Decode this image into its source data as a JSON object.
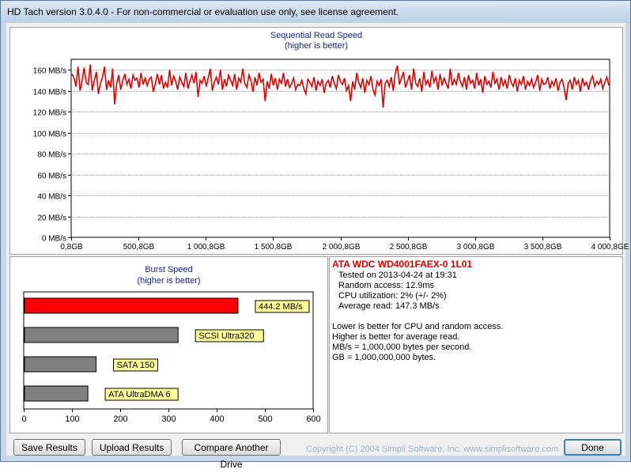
{
  "window": {
    "title": "HD Tach version 3.0.4.0  - For non-commercial or evaluation use only, see license agreement."
  },
  "read_chart": {
    "title": "Sequential Read Speed",
    "subtitle": "(higher is better)",
    "line_color": "#e00000",
    "chart_data": {
      "type": "line",
      "title": "Sequential Read Speed",
      "subtitle": "(higher is better)",
      "yticks": [
        "0 MB/s",
        "20 MB/s",
        "40 MB/s",
        "60 MB/s",
        "80 MB/s",
        "100 MB/s",
        "120 MB/s",
        "140 MB/s",
        "160 MB/s"
      ],
      "xticks": [
        "0,8GB",
        "500,8GB",
        "1 000,8GB",
        "1 500,8GB",
        "2 000,8GB",
        "2 500,8GB",
        "3 000,8GB",
        "3 500,8GB",
        "4 000,8GE"
      ],
      "ylim": [
        0,
        170
      ],
      "xlim": [
        0.8,
        4000.8
      ],
      "grid": true,
      "series": [
        {
          "values": [
            156,
            152,
            144,
            163,
            140,
            150,
            162,
            148,
            146,
            165,
            140,
            150,
            158,
            137,
            147,
            153,
            163,
            141,
            150,
            143,
            161,
            127,
            147,
            155,
            141,
            150,
            156,
            146,
            151,
            142,
            155,
            150,
            152,
            143,
            157,
            146,
            152,
            145,
            151,
            153,
            139,
            147,
            156,
            146,
            155,
            142,
            148,
            143,
            160,
            145,
            154,
            149,
            141,
            153,
            148,
            144,
            157,
            142,
            149,
            155,
            147,
            158,
            134,
            150,
            147,
            154,
            144,
            152,
            161,
            140,
            148,
            153,
            146,
            160,
            141,
            151,
            144,
            155,
            150,
            145,
            156,
            141,
            152,
            148,
            161,
            147,
            143,
            155,
            150,
            139,
            153,
            145,
            157,
            148,
            151,
            130,
            149,
            142,
            156,
            145,
            152,
            141,
            151,
            147,
            157,
            144,
            151,
            143,
            147,
            152,
            141,
            146,
            145,
            150,
            142,
            137,
            151,
            148,
            144,
            153,
            140,
            149,
            145,
            151,
            138,
            147,
            150,
            143,
            154,
            147,
            142,
            155,
            149,
            146,
            152,
            140,
            145,
            130,
            149,
            141,
            157,
            148,
            143,
            152,
            138,
            150,
            146,
            154,
            141,
            136,
            149,
            145,
            151,
            124,
            147,
            150,
            144,
            153,
            140,
            157,
            164,
            146,
            152,
            158,
            143,
            149,
            155,
            141,
            161,
            147,
            144,
            152,
            139,
            158,
            146,
            150,
            143,
            159,
            148,
            153,
            141,
            156,
            145,
            152,
            147,
            142,
            161,
            145,
            151,
            146,
            157,
            149,
            144,
            153,
            141,
            155,
            147,
            150,
            142,
            157,
            145,
            151,
            138,
            154,
            146,
            149,
            143,
            158,
            147,
            151,
            141,
            153,
            145,
            150,
            142,
            155,
            148,
            144,
            152,
            139,
            150,
            146,
            154,
            141,
            149,
            145,
            151,
            143,
            148,
            155,
            140,
            151,
            146,
            147,
            153,
            142,
            149,
            145,
            152,
            140,
            148,
            151,
            143,
            131,
            147,
            150,
            141,
            153,
            146,
            150,
            139,
            152,
            145,
            148,
            141,
            150,
            154,
            144,
            149,
            146,
            151,
            142,
            148,
            153,
            145
          ]
        }
      ]
    }
  },
  "burst_chart": {
    "title": "Burst Speed",
    "subtitle": "(higher is better)",
    "chart_data": {
      "type": "bar",
      "title": "Burst Speed",
      "subtitle": "(higher is better)",
      "categories": [
        "ATA WDC WD4001FAEX-0 1L01",
        "SCSI Ultra320",
        "SATA 150",
        "ATA UltraDMA 6"
      ],
      "values": [
        444.2,
        320,
        150,
        133
      ],
      "labels": [
        "444.2 MB/s",
        "SCSI Ultra320",
        "SATA 150",
        "ATA UltraDMA 6"
      ],
      "colors": [
        "#ff0000",
        "#808080",
        "#808080",
        "#808080"
      ],
      "xticks": [
        "0",
        "100",
        "200",
        "300",
        "400",
        "500",
        "600"
      ],
      "xlim": [
        0,
        600
      ]
    }
  },
  "info": {
    "drive": "ATA WDC WD4001FAEX-0 1L01",
    "tested": "Tested on 2013-04-24 at 19:31",
    "random_access": "Random access: 12.9ms",
    "cpu": "CPU utilization: 2% (+/- 2%)",
    "average_read": "Average read: 147.3 MB/s",
    "note1": "Lower is better for CPU and random access.",
    "note2": "Higher is better for average read.",
    "note3": "MB/s = 1,000,000 bytes per second.",
    "note4": "GB = 1,000,000,000 bytes."
  },
  "buttons": {
    "save": "Save Results",
    "upload": "Upload Results",
    "compare": "Compare Another Drive",
    "done": "Done"
  },
  "footer": {
    "copyright": "Copyright (C) 2004 Simpli Software, Inc. www.simplisoftware.com"
  }
}
